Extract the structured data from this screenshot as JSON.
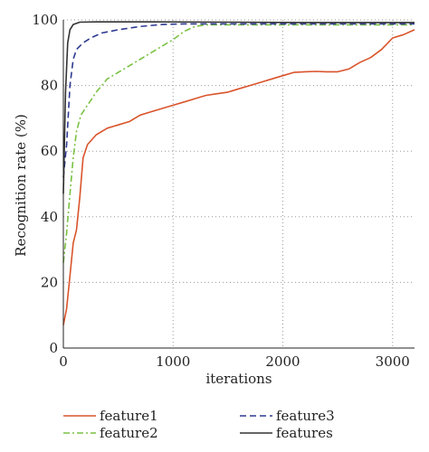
{
  "chart_data": {
    "type": "line",
    "xlabel": "iterations",
    "ylabel": "Recognition rate (%)",
    "xlim": [
      0,
      3200
    ],
    "ylim": [
      0,
      100
    ],
    "xticks": [
      0,
      1000,
      2000,
      3000
    ],
    "yticks": [
      0,
      20,
      40,
      60,
      80,
      100
    ],
    "grid": true,
    "legend_position": "bottom",
    "series": [
      {
        "name": "feature1",
        "color": "#d9542b",
        "dash": "solid",
        "points": [
          [
            0,
            7
          ],
          [
            30,
            12
          ],
          [
            60,
            22
          ],
          [
            90,
            32
          ],
          [
            120,
            36
          ],
          [
            150,
            46
          ],
          [
            180,
            58
          ],
          [
            220,
            62
          ],
          [
            300,
            65
          ],
          [
            400,
            67
          ],
          [
            500,
            68
          ],
          [
            600,
            69
          ],
          [
            700,
            71
          ],
          [
            800,
            72
          ],
          [
            900,
            73
          ],
          [
            1000,
            74
          ],
          [
            1100,
            75
          ],
          [
            1200,
            76
          ],
          [
            1300,
            77
          ],
          [
            1400,
            77.5
          ],
          [
            1500,
            78
          ],
          [
            1600,
            79
          ],
          [
            1700,
            80
          ],
          [
            1800,
            81
          ],
          [
            1900,
            82
          ],
          [
            2000,
            83
          ],
          [
            2100,
            84
          ],
          [
            2200,
            84.2
          ],
          [
            2300,
            84.3
          ],
          [
            2400,
            84.2
          ],
          [
            2500,
            84.2
          ],
          [
            2600,
            85
          ],
          [
            2700,
            87
          ],
          [
            2800,
            88.5
          ],
          [
            2900,
            91
          ],
          [
            3000,
            94.5
          ],
          [
            3100,
            95.5
          ],
          [
            3200,
            97
          ]
        ]
      },
      {
        "name": "feature2",
        "color": "#7ac143",
        "dash": "dashdot",
        "points": [
          [
            0,
            26
          ],
          [
            30,
            35
          ],
          [
            60,
            47
          ],
          [
            90,
            58
          ],
          [
            120,
            66
          ],
          [
            160,
            71
          ],
          [
            220,
            74
          ],
          [
            300,
            78
          ],
          [
            400,
            82
          ],
          [
            500,
            84
          ],
          [
            600,
            86
          ],
          [
            700,
            88
          ],
          [
            800,
            90
          ],
          [
            900,
            92
          ],
          [
            1000,
            94
          ],
          [
            1100,
            96.5
          ],
          [
            1200,
            98
          ],
          [
            1300,
            98.5
          ],
          [
            1400,
            98.5
          ],
          [
            2000,
            98.5
          ],
          [
            2600,
            98.5
          ],
          [
            3200,
            98.5
          ]
        ]
      },
      {
        "name": "feature3",
        "color": "#2e3a92",
        "dash": "dashed",
        "points": [
          [
            0,
            52
          ],
          [
            30,
            62
          ],
          [
            60,
            80
          ],
          [
            90,
            88
          ],
          [
            120,
            91
          ],
          [
            180,
            93
          ],
          [
            250,
            94.5
          ],
          [
            350,
            96
          ],
          [
            500,
            97
          ],
          [
            700,
            98
          ],
          [
            900,
            98.6
          ],
          [
            1100,
            98.8
          ],
          [
            1500,
            98.8
          ],
          [
            2000,
            98.8
          ],
          [
            2600,
            98.8
          ],
          [
            3200,
            98.8
          ]
        ]
      },
      {
        "name": "features",
        "color": "#333333",
        "dash": "solid",
        "points": [
          [
            0,
            47
          ],
          [
            20,
            78
          ],
          [
            40,
            93
          ],
          [
            60,
            97
          ],
          [
            90,
            98.6
          ],
          [
            150,
            99.3
          ],
          [
            300,
            99.4
          ],
          [
            800,
            99.4
          ],
          [
            1500,
            99.3
          ],
          [
            2200,
            99.2
          ],
          [
            3200,
            99.2
          ]
        ]
      }
    ]
  }
}
